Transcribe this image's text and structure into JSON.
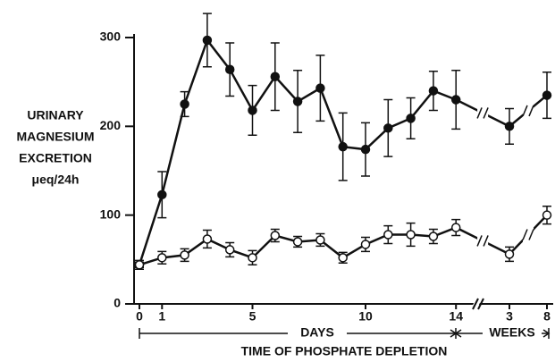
{
  "chart_data": {
    "type": "line",
    "ylabel": [
      "URINARY",
      "MAGNESIUM",
      "EXCRETION",
      "μeq/24h"
    ],
    "xlabel": "TIME OF PHOSPHATE DEPLETION",
    "segments": [
      "DAYS",
      "WEEKS"
    ],
    "categories": [
      "0",
      "1",
      null,
      null,
      null,
      "5",
      null,
      null,
      null,
      null,
      "10",
      null,
      null,
      null,
      "14",
      "3",
      "8"
    ],
    "series": [
      {
        "color": "#111111",
        "values": [
          44,
          123,
          225,
          297,
          264,
          218,
          256,
          228,
          243,
          177,
          174,
          198,
          209,
          240,
          230,
          200,
          235
        ],
        "errors": [
          5,
          26,
          14,
          30,
          30,
          28,
          38,
          35,
          37,
          38,
          30,
          32,
          23,
          22,
          33,
          20,
          26
        ]
      },
      {
        "color": "#ffffff",
        "values": [
          44,
          52,
          55,
          73,
          61,
          52,
          77,
          70,
          72,
          52,
          67,
          78,
          78,
          76,
          86,
          56,
          100
        ],
        "errors": [
          3,
          7,
          7,
          10,
          8,
          8,
          7,
          6,
          7,
          6,
          8,
          10,
          13,
          8,
          9,
          8,
          10
        ]
      }
    ],
    "ylim": [
      0,
      300
    ],
    "yticks": [
      0,
      100,
      200,
      300
    ]
  }
}
